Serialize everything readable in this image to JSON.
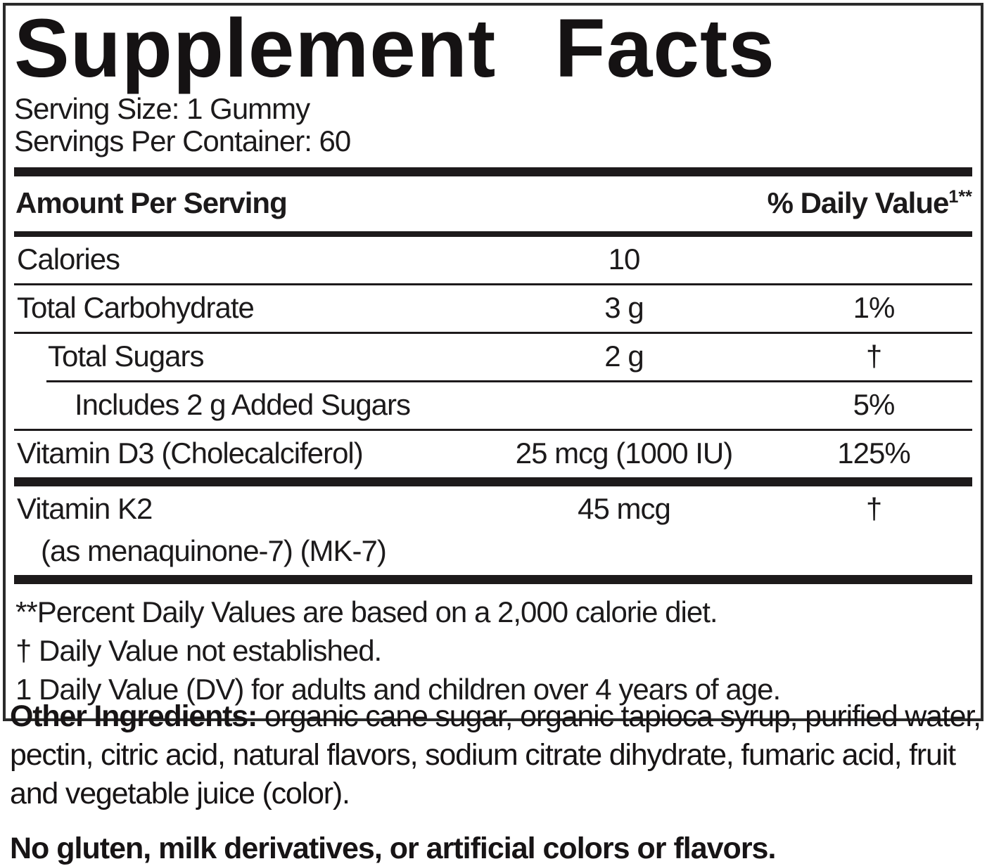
{
  "label": {
    "title": "Supplement Facts",
    "serving_size": "Serving Size: 1 Gummy",
    "servings_per_container": "Servings Per Container: 60",
    "header": {
      "amount_col": "Amount Per Serving",
      "dv_col": "% Daily Value",
      "dv_superscript": "1**"
    },
    "rows": [
      {
        "name": "Calories",
        "amount": "10",
        "dv": "",
        "indent": 0,
        "divider_below": "thin"
      },
      {
        "name": "Total Carbohydrate",
        "amount": "3 g",
        "dv": "1%",
        "indent": 0,
        "divider_below": "thin"
      },
      {
        "name": "Total Sugars",
        "amount": "2 g",
        "dv": "†",
        "indent": 1,
        "divider_below": "thin-indented"
      },
      {
        "name": "Includes 2 g Added Sugars",
        "amount": "",
        "dv": "5%",
        "indent": 2,
        "divider_below": "thin"
      },
      {
        "name": "Vitamin D3 (Cholecalciferol)",
        "amount": "25 mcg (1000 IU)",
        "dv": "125%",
        "indent": 0,
        "divider_below": "thick"
      },
      {
        "name": "Vitamin K2",
        "name_line2": "(as menaquinone-7) (MK-7)",
        "amount": "45 mcg",
        "dv": "†",
        "indent": 0,
        "divider_below": "thick"
      }
    ],
    "footnotes": [
      "**Percent Daily Values are based on a 2,000 calorie diet.",
      "† Daily Value not established.",
      "1 Daily Value (DV) for adults and children over 4 years of age."
    ],
    "other_ingredients_label": "Other Ingredients:",
    "other_ingredients_text": " organic cane sugar, organic tapioca syrup, purified water, pectin, citric acid, natural flavors, sodium citrate dihydrate, fumaric acid, fruit and vegetable juice (color).",
    "allergen_statement": "No gluten, milk derivatives, or artificial colors or flavors.",
    "colors": {
      "text": "#1c1a1b",
      "bars": "#1d1a1b",
      "background": "#ffffff"
    }
  }
}
